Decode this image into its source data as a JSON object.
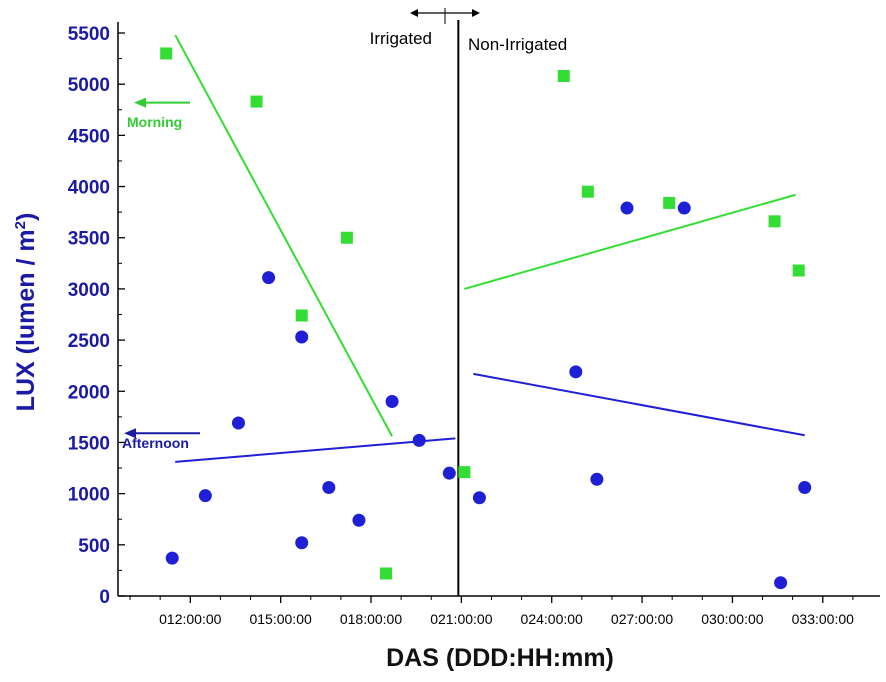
{
  "chart_data": {
    "type": "scatter",
    "title": "",
    "xlabel": "DAS (DDD:HH:mm)",
    "ylabel": "LUX (lumen / m",
    "ylabel_sup": "2",
    "ylabel_end": ")",
    "ylim": [
      0,
      5500
    ],
    "xlim_hours": [
      9.6,
      34.9
    ],
    "y_ticks": [
      0,
      500,
      1000,
      1500,
      2000,
      2500,
      3000,
      3500,
      4000,
      4500,
      5000,
      5500
    ],
    "x_ticks": [
      {
        "hour": 12,
        "label": "012:00:00"
      },
      {
        "hour": 15,
        "label": "015:00:00"
      },
      {
        "hour": 18,
        "label": "018:00:00"
      },
      {
        "hour": 21,
        "label": "021:00:00"
      },
      {
        "hour": 24,
        "label": "024:00:00"
      },
      {
        "hour": 27,
        "label": "027:00:00"
      },
      {
        "hour": 30,
        "label": "030:00:00"
      },
      {
        "hour": 33,
        "label": "033:00:00"
      }
    ],
    "divider_hour": 20.9,
    "region_left": "Irrigated",
    "region_right": "Non-Irrigated",
    "series": [
      {
        "name": "Morning",
        "marker": "square",
        "color": "#33dd33",
        "points": [
          {
            "x": 11.2,
            "y": 5300
          },
          {
            "x": 14.2,
            "y": 4830
          },
          {
            "x": 15.7,
            "y": 2740
          },
          {
            "x": 17.2,
            "y": 3500
          },
          {
            "x": 18.5,
            "y": 220
          },
          {
            "x": 21.1,
            "y": 1210
          },
          {
            "x": 24.4,
            "y": 5080
          },
          {
            "x": 25.2,
            "y": 3950
          },
          {
            "x": 27.9,
            "y": 3840
          },
          {
            "x": 31.4,
            "y": 3660
          },
          {
            "x": 32.2,
            "y": 3180
          }
        ],
        "fits": [
          {
            "x1": 11.5,
            "y1": 5480,
            "x2": 18.7,
            "y2": 1560
          },
          {
            "x1": 21.1,
            "y1": 3000,
            "x2": 32.1,
            "y2": 3920
          }
        ]
      },
      {
        "name": "Afternoon",
        "marker": "circle",
        "color": "#1f1fd6",
        "points": [
          {
            "x": 11.4,
            "y": 370
          },
          {
            "x": 12.5,
            "y": 980
          },
          {
            "x": 13.6,
            "y": 1690
          },
          {
            "x": 14.6,
            "y": 3110
          },
          {
            "x": 15.7,
            "y": 2530
          },
          {
            "x": 15.7,
            "y": 520
          },
          {
            "x": 16.6,
            "y": 1060
          },
          {
            "x": 17.6,
            "y": 740
          },
          {
            "x": 18.7,
            "y": 1900
          },
          {
            "x": 19.6,
            "y": 1520
          },
          {
            "x": 20.6,
            "y": 1200
          },
          {
            "x": 21.6,
            "y": 960
          },
          {
            "x": 24.8,
            "y": 2190
          },
          {
            "x": 25.5,
            "y": 1140
          },
          {
            "x": 26.5,
            "y": 3790
          },
          {
            "x": 28.4,
            "y": 3790
          },
          {
            "x": 31.6,
            "y": 130
          },
          {
            "x": 32.4,
            "y": 1060
          }
        ],
        "fits": [
          {
            "x1": 11.5,
            "y1": 1310,
            "x2": 20.8,
            "y2": 1540
          },
          {
            "x1": 21.4,
            "y1": 2170,
            "x2": 32.4,
            "y2": 1570
          }
        ]
      }
    ],
    "annotations": {
      "morning_label": "Morning",
      "afternoon_label": "Afternoon",
      "morning_arrow_y": 4820,
      "afternoon_arrow_y": 1590
    }
  }
}
